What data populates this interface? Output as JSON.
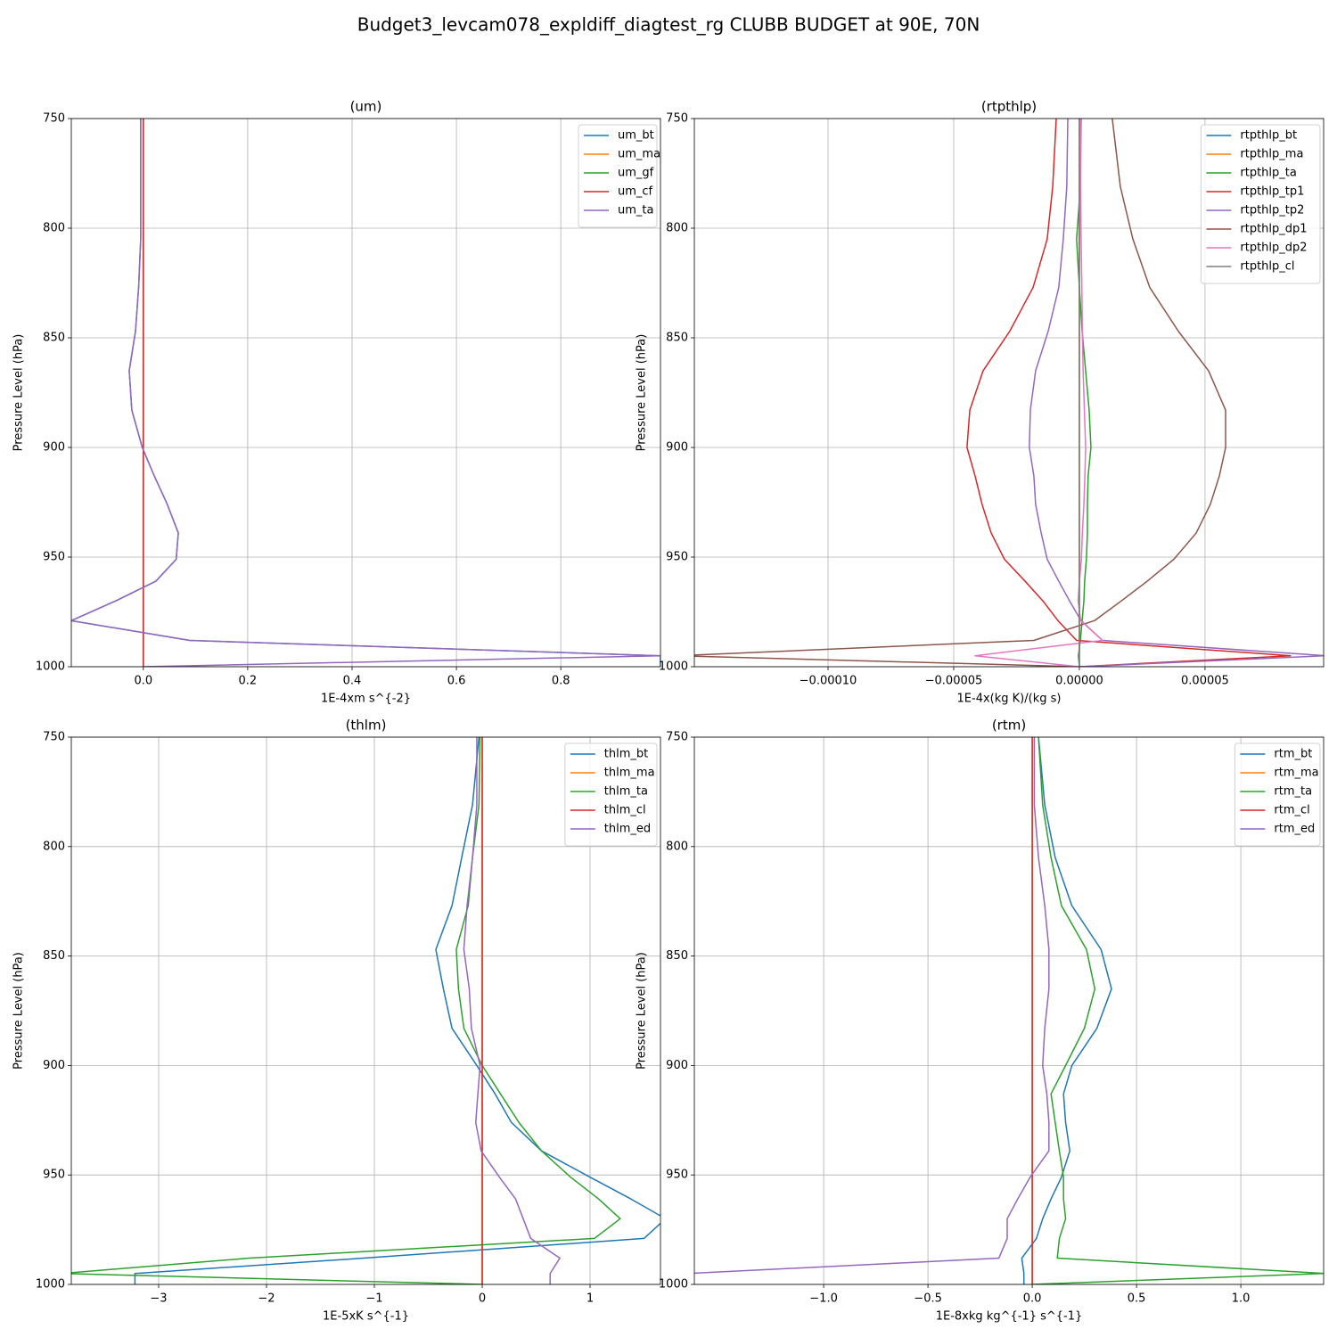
{
  "title": "Budget3_levcam078_expldiff_diagtest_rg CLUBB BUDGET at 90E, 70N",
  "chart_data": [
    {
      "type": "line",
      "title": "(um)",
      "xlabel": "1E-4xm s^{-2}",
      "ylabel": "Pressure Level (hPa)",
      "y": [
        750,
        781,
        805,
        827,
        847,
        865,
        883,
        900,
        913,
        926,
        939,
        951,
        961,
        970,
        979,
        988,
        995,
        1000
      ],
      "ylim": [
        750,
        1000
      ],
      "y_inverted": true,
      "yticks": [
        750,
        800,
        850,
        900,
        950,
        1000
      ],
      "xlim": [
        -0.138,
        0.991
      ],
      "xticks": [
        {
          "value": 0,
          "label": "0.0"
        },
        {
          "value": 0.2,
          "label": "0.2"
        },
        {
          "value": 0.4,
          "label": "0.4"
        },
        {
          "value": 0.6,
          "label": "0.6"
        },
        {
          "value": 0.8,
          "label": "0.8"
        }
      ],
      "grid": true,
      "legend": "upper right",
      "series": [
        {
          "name": "um_bt",
          "color": "#1f77b4",
          "values": [
            -0.005,
            -0.005,
            -0.005,
            -0.009,
            -0.015,
            -0.027,
            -0.022,
            -0.002,
            0.021,
            0.046,
            0.067,
            0.063,
            0.024,
            -0.053,
            -0.138,
            0.089,
            0.991,
            0.991
          ]
        },
        {
          "name": "um_ma",
          "color": "#ff7f0e",
          "values": [
            0,
            0,
            0,
            0,
            0,
            0,
            0,
            0,
            0,
            0,
            0,
            0,
            0,
            0,
            0,
            0,
            0,
            0
          ]
        },
        {
          "name": "um_gf",
          "color": "#2ca02c",
          "values": [
            0,
            0,
            0,
            0,
            0,
            0,
            0,
            0,
            0,
            0,
            0,
            0,
            0,
            0,
            0,
            0,
            0,
            0
          ]
        },
        {
          "name": "um_cf",
          "color": "#d62728",
          "values": [
            0,
            0,
            0,
            0,
            0,
            0,
            0,
            0,
            0,
            0,
            0,
            0,
            0,
            0,
            0,
            0,
            0,
            0
          ]
        },
        {
          "name": "um_ta",
          "color": "#9467bd",
          "values": [
            -0.005,
            -0.005,
            -0.005,
            -0.009,
            -0.015,
            -0.027,
            -0.022,
            -0.002,
            0.021,
            0.046,
            0.067,
            0.063,
            0.024,
            -0.053,
            -0.138,
            0.089,
            0.991,
            0
          ]
        }
      ]
    },
    {
      "type": "line",
      "title": "(rtpthlp)",
      "xlabel": "1E-4x(kg K)/(kg s)",
      "ylabel": "Pressure Level (hPa)",
      "y": [
        750,
        781,
        805,
        827,
        847,
        865,
        883,
        900,
        913,
        926,
        939,
        951,
        961,
        970,
        979,
        988,
        995,
        1000
      ],
      "ylim": [
        750,
        1000
      ],
      "y_inverted": true,
      "yticks": [
        750,
        800,
        850,
        900,
        950,
        1000
      ],
      "xlim": [
        -0.0001532,
        9.72e-05
      ],
      "xticks": [
        {
          "value": -0.0001,
          "label": "−0.00010"
        },
        {
          "value": -5e-05,
          "label": "−0.00005"
        },
        {
          "value": 0,
          "label": "0.00000"
        },
        {
          "value": 5e-05,
          "label": "0.00005"
        }
      ],
      "grid": true,
      "legend": "upper right",
      "series": [
        {
          "name": "rtpthlp_bt",
          "color": "#1f77b4",
          "values": [
            0,
            0,
            0,
            0,
            0,
            0,
            0,
            0,
            0,
            0,
            0,
            0,
            0,
            0,
            0,
            0,
            0,
            0
          ]
        },
        {
          "name": "rtpthlp_ma",
          "color": "#ff7f0e",
          "values": [
            0,
            0,
            0,
            0,
            0,
            0,
            0,
            0,
            0,
            0,
            0,
            0,
            0,
            0,
            0,
            0,
            0,
            0
          ]
        },
        {
          "name": "rtpthlp_ta",
          "color": "#2ca02c",
          "values": [
            7e-07,
            4e-07,
            -1.1e-06,
            0,
            1.1e-06,
            2.5e-06,
            3.9e-06,
            4.6e-06,
            3.5e-06,
            3.2e-06,
            3.2e-06,
            2.8e-06,
            2.1e-06,
            1.8e-06,
            1.1e-06,
            4e-07,
            -4e-07,
            0
          ]
        },
        {
          "name": "rtpthlp_tp1",
          "color": "#d62728",
          "values": [
            -9.2e-06,
            -1.06e-05,
            -1.28e-05,
            -1.84e-05,
            -2.77e-05,
            -3.83e-05,
            -4.36e-05,
            -4.47e-05,
            -4.15e-05,
            -3.87e-05,
            -3.51e-05,
            -2.98e-05,
            -2.16e-05,
            -1.45e-05,
            -8.5e-06,
            -1.1e-06,
            8.4e-05,
            0
          ]
        },
        {
          "name": "rtpthlp_tp2",
          "color": "#9467bd",
          "values": [
            -4.6e-06,
            -5e-06,
            -6.4e-06,
            -8.2e-06,
            -1.24e-05,
            -1.74e-05,
            -1.95e-05,
            -1.99e-05,
            -1.81e-05,
            -1.74e-05,
            -1.52e-05,
            -1.28e-05,
            -8.2e-06,
            -3.9e-06,
            7e-07,
            9.2e-06,
            9.8e-05,
            0
          ]
        },
        {
          "name": "rtpthlp_dp1",
          "color": "#8c564b",
          "values": [
            1.31e-05,
            1.63e-05,
            2.13e-05,
            2.8e-05,
            3.94e-05,
            5.14e-05,
            5.82e-05,
            5.82e-05,
            5.57e-05,
            5.21e-05,
            4.65e-05,
            3.76e-05,
            2.7e-05,
            1.67e-05,
            6e-06,
            -1.81e-05,
            -0.00016,
            0
          ]
        },
        {
          "name": "rtpthlp_dp2",
          "color": "#e377c2",
          "values": [
            5e-07,
            5e-07,
            7e-07,
            1e-06,
            1.2e-06,
            1.5e-06,
            2e-06,
            2.5e-06,
            2.2e-06,
            1.8e-06,
            1.2e-06,
            8e-07,
            0,
            -5e-07,
            5e-07,
            9.2e-06,
            -4.15e-05,
            0
          ]
        },
        {
          "name": "rtpthlp_cl",
          "color": "#7f7f7f",
          "values": [
            0,
            0,
            0,
            0,
            0,
            0,
            0,
            0,
            0,
            0,
            0,
            0,
            0,
            0,
            0,
            0,
            0,
            0
          ]
        }
      ]
    },
    {
      "type": "line",
      "title": "(thlm)",
      "xlabel": "1E-5xK s^{-1}",
      "ylabel": "Pressure Level (hPa)",
      "y": [
        750,
        781,
        805,
        827,
        847,
        865,
        883,
        900,
        913,
        926,
        939,
        951,
        961,
        970,
        979,
        988,
        995,
        1000
      ],
      "ylim": [
        750,
        1000
      ],
      "y_inverted": true,
      "yticks": [
        750,
        800,
        850,
        900,
        950,
        1000
      ],
      "xlim": [
        -3.81,
        1.653
      ],
      "xticks": [
        {
          "value": -3,
          "label": "−3"
        },
        {
          "value": -2,
          "label": "−2"
        },
        {
          "value": -1,
          "label": "−1"
        },
        0,
        1
      ],
      "grid": true,
      "legend": "upper right",
      "series": [
        {
          "name": "thlm_bt",
          "color": "#1f77b4",
          "values": [
            -0.03,
            -0.09,
            -0.19,
            -0.28,
            -0.43,
            -0.36,
            -0.28,
            -0.05,
            0.12,
            0.27,
            0.55,
            1.0,
            1.38,
            1.7,
            1.5,
            -1.1,
            -3.22,
            -3.22
          ]
        },
        {
          "name": "thlm_ma",
          "color": "#ff7f0e",
          "values": [
            0,
            0,
            0,
            0,
            0,
            0,
            0,
            0,
            0,
            0,
            0,
            0,
            0,
            0,
            0,
            0,
            0,
            0
          ]
        },
        {
          "name": "thlm_ta",
          "color": "#2ca02c",
          "values": [
            -0.02,
            -0.03,
            -0.09,
            -0.13,
            -0.24,
            -0.22,
            -0.17,
            0,
            0.17,
            0.34,
            0.55,
            0.82,
            1.08,
            1.28,
            1.04,
            -2.16,
            -3.9,
            0
          ]
        },
        {
          "name": "thlm_cl",
          "color": "#d62728",
          "values": [
            0,
            0,
            0,
            0,
            0,
            0,
            0,
            0,
            0,
            0,
            0,
            0,
            0,
            0,
            0,
            0,
            0,
            0
          ]
        },
        {
          "name": "thlm_ed",
          "color": "#9467bd",
          "values": [
            -0.05,
            -0.05,
            -0.09,
            -0.14,
            -0.17,
            -0.12,
            -0.1,
            -0.02,
            -0.04,
            -0.06,
            -0.01,
            0.16,
            0.31,
            0.38,
            0.45,
            0.72,
            0.63,
            0.63
          ]
        }
      ]
    },
    {
      "type": "line",
      "title": "(rtm)",
      "xlabel": "1E-8xkg kg^{-1} s^{-1}",
      "ylabel": "Pressure Level (hPa)",
      "y": [
        750,
        781,
        805,
        827,
        847,
        865,
        883,
        900,
        913,
        926,
        939,
        951,
        961,
        970,
        979,
        988,
        995,
        1000
      ],
      "ylim": [
        750,
        1000
      ],
      "y_inverted": true,
      "yticks": [
        750,
        800,
        850,
        900,
        950,
        1000
      ],
      "xlim": [
        -1.62,
        1.397
      ],
      "xticks": [
        {
          "value": -1,
          "label": "−1.0"
        },
        {
          "value": -0.5,
          "label": "−0.5"
        },
        {
          "value": 0,
          "label": "0.0"
        },
        0.5,
        {
          "value": 1,
          "label": "1.0"
        }
      ],
      "grid": true,
      "legend": "upper right",
      "series": [
        {
          "name": "rtm_bt",
          "color": "#1f77b4",
          "values": [
            0.03,
            0.06,
            0.11,
            0.19,
            0.33,
            0.38,
            0.31,
            0.19,
            0.15,
            0.16,
            0.18,
            0.14,
            0.09,
            0.05,
            0.02,
            -0.05,
            -0.04,
            -0.04
          ]
        },
        {
          "name": "rtm_ma",
          "color": "#ff7f0e",
          "values": [
            0,
            0,
            0,
            0,
            0,
            0,
            0,
            0,
            0,
            0,
            0,
            0,
            0,
            0,
            0,
            0,
            0,
            0
          ]
        },
        {
          "name": "rtm_ta",
          "color": "#2ca02c",
          "values": [
            0.03,
            0.05,
            0.09,
            0.14,
            0.26,
            0.3,
            0.25,
            0.16,
            0.09,
            0.11,
            0.13,
            0.15,
            0.15,
            0.16,
            0.13,
            0.12,
            1.4,
            0
          ]
        },
        {
          "name": "rtm_cl",
          "color": "#d62728",
          "values": [
            0,
            0,
            0,
            0,
            0,
            0,
            0,
            0,
            0,
            0,
            0,
            0,
            0,
            0,
            0,
            0,
            0,
            0
          ]
        },
        {
          "name": "rtm_ed",
          "color": "#9467bd",
          "values": [
            0.01,
            0.01,
            0.03,
            0.06,
            0.08,
            0.08,
            0.06,
            0.05,
            0.07,
            0.08,
            0.08,
            -0.01,
            -0.07,
            -0.12,
            -0.12,
            -0.16,
            -1.65,
            -1.65
          ]
        }
      ]
    }
  ]
}
